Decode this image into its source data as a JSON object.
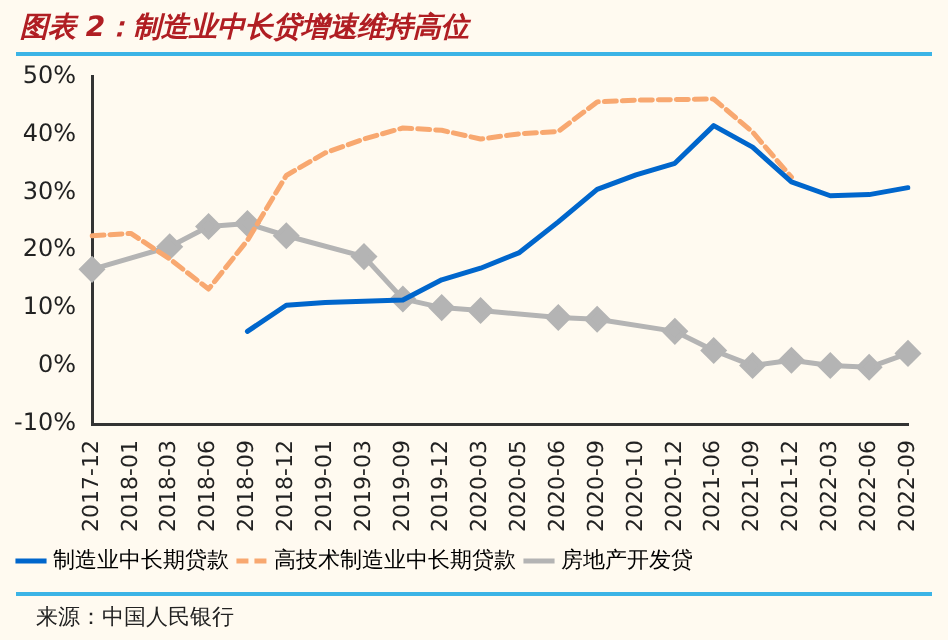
{
  "chart_data": {
    "type": "line",
    "title": "图表 2：制造业中长贷增速维持高位",
    "categories": [
      "2017-12",
      "2018-01",
      "2018-03",
      "2018-06",
      "2018-09",
      "2018-12",
      "2019-01",
      "2019-03",
      "2019-09",
      "2019-12",
      "2020-03",
      "2020-05",
      "2020-06",
      "2020-09",
      "2020-10",
      "2020-12",
      "2021-06",
      "2021-09",
      "2021-12",
      "2022-03",
      "2022-06",
      "2022-09"
    ],
    "series": [
      {
        "name": "制造业中长期贷款",
        "color": "#0066cc",
        "line_style": "solid",
        "marker": "none",
        "values": [
          null,
          null,
          null,
          null,
          6.0,
          10.5,
          11.0,
          11.2,
          11.4,
          14.9,
          16.9,
          19.6,
          24.9,
          30.5,
          33.0,
          35.0,
          41.5,
          37.8,
          31.8,
          29.4,
          29.6,
          30.8
        ]
      },
      {
        "name": "高技术制造业中长期贷款",
        "color": "#f8a870",
        "line_style": "dashed",
        "marker": "none",
        "values": [
          22.5,
          22.9,
          18.5,
          13.3,
          21.7,
          32.9,
          36.8,
          39.2,
          41.1,
          40.7,
          39.2,
          40.1,
          40.5,
          45.6,
          45.9,
          46.0,
          46.1,
          40.4,
          32.6,
          null,
          null,
          null
        ]
      },
      {
        "name": "房地产开发贷",
        "color": "#b4b4b4",
        "line_style": "solid",
        "marker": "diamond",
        "values": [
          16.7,
          null,
          20.6,
          24.1,
          24.6,
          22.5,
          null,
          18.9,
          11.6,
          10.1,
          9.6,
          null,
          8.4,
          8.1,
          null,
          6.0,
          2.7,
          0.1,
          1.0,
          0.1,
          -0.2,
          2.2
        ]
      }
    ],
    "ylim": [
      -10,
      50
    ],
    "yticks": [
      {
        "value": -10,
        "label": "-10%"
      },
      {
        "value": 0,
        "label": "0%"
      },
      {
        "value": 10,
        "label": "10%"
      },
      {
        "value": 20,
        "label": "20%"
      },
      {
        "value": 30,
        "label": "30%"
      },
      {
        "value": 40,
        "label": "40%"
      },
      {
        "value": 50,
        "label": "50%"
      }
    ],
    "grid": false,
    "legend": "bottom",
    "annotations": [
      "来源：中国人民银行"
    ]
  }
}
